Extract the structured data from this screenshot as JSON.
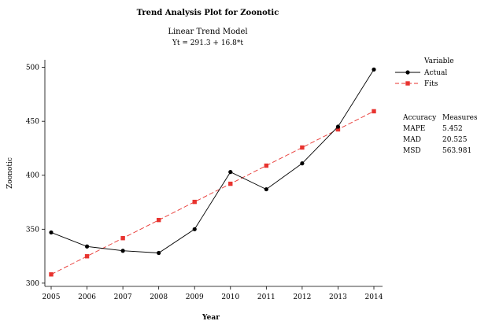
{
  "chart_data": {
    "type": "line",
    "title": "Trend Analysis Plot for Zoonotic",
    "subtitle": "Linear Trend Model",
    "equation": "Yt = 291.3 + 16.8*t",
    "xlabel": "Year",
    "ylabel": "Zoonotic",
    "categories": [
      "2005",
      "2006",
      "2007",
      "2008",
      "2009",
      "2010",
      "2011",
      "2012",
      "2013",
      "2014"
    ],
    "y_ticks": [
      "300",
      "350",
      "400",
      "450",
      "500"
    ],
    "ylim": [
      297,
      507
    ],
    "grid": false,
    "legend_title": "Variable",
    "legend_position": "right",
    "series": [
      {
        "name": "Actual",
        "color": "#000000",
        "marker": "circle",
        "line_style": "solid",
        "values": [
          347,
          334,
          330,
          328,
          350,
          403,
          387,
          411,
          445,
          498
        ]
      },
      {
        "name": "Fits",
        "color": "#e8332f",
        "marker": "square",
        "line_style": "dashed",
        "values": [
          308.1,
          324.9,
          341.7,
          358.5,
          375.3,
          392.1,
          408.9,
          425.7,
          442.5,
          459.3
        ]
      }
    ],
    "accuracy": {
      "header_left": "Accuracy",
      "header_right": "Measures",
      "rows": [
        {
          "label": "MAPE",
          "value": "5.452"
        },
        {
          "label": "MAD",
          "value": "20.525"
        },
        {
          "label": "MSD",
          "value": "563.981"
        }
      ]
    }
  }
}
